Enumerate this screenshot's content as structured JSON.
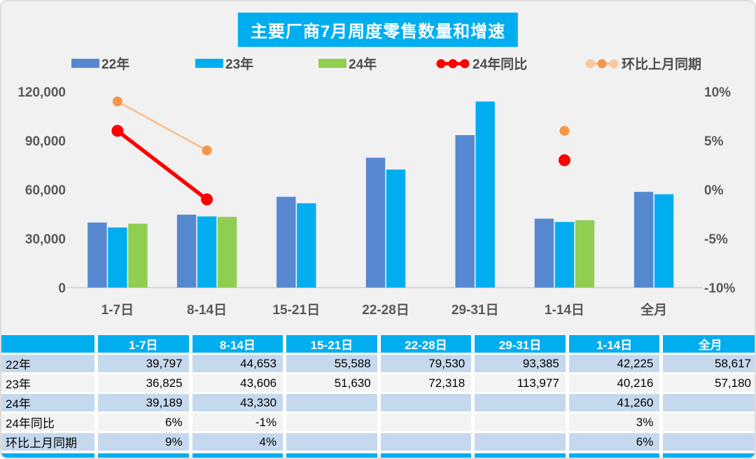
{
  "title": "主要厂商7月周度零售数量和增速",
  "chart_data": {
    "type": "bar+line",
    "title": "主要厂商7月周度零售数量和增速",
    "categories": [
      "1-7日",
      "8-14日",
      "15-21日",
      "22-28日",
      "29-31日",
      "1-14日",
      "全月"
    ],
    "bar_series": [
      {
        "name": "22年",
        "color": "#5688D0",
        "values": [
          39797,
          44653,
          55588,
          79530,
          93385,
          42225,
          58617
        ]
      },
      {
        "name": "23年",
        "color": "#00AEEF",
        "values": [
          36825,
          43606,
          51630,
          72318,
          113977,
          40216,
          57180
        ]
      },
      {
        "name": "24年",
        "color": "#8FCE50",
        "values": [
          39189,
          43330,
          null,
          null,
          null,
          41260,
          null
        ]
      }
    ],
    "line_series": [
      {
        "name": "24年同比",
        "line_color": "#FE0000",
        "dot_color": "#FE0000",
        "values_pct": [
          6,
          -1,
          null,
          null,
          null,
          3,
          null
        ]
      },
      {
        "name": "环比上月同期",
        "line_color": "#F8BE8C",
        "dot_color": "#F79646",
        "values_pct": [
          9,
          4,
          null,
          null,
          null,
          6,
          null
        ]
      }
    ],
    "left_axis": {
      "ticks": [
        "0",
        "30,000",
        "60,000",
        "90,000",
        "120,000"
      ],
      "min": 0,
      "max": 120000
    },
    "right_axis": {
      "ticks": [
        "-10%",
        "-5%",
        "0%",
        "5%",
        "10%"
      ],
      "min": -10,
      "max": 10
    },
    "grid": false,
    "legend_position": "top"
  },
  "table": {
    "header": [
      "",
      "1-7日",
      "8-14日",
      "15-21日",
      "22-28日",
      "29-31日",
      "1-14日",
      "全月"
    ],
    "rows": [
      {
        "label": "22年",
        "cells": [
          "39,797",
          "44,653",
          "55,588",
          "79,530",
          "93,385",
          "42,225",
          "58,617"
        ]
      },
      {
        "label": "23年",
        "cells": [
          "36,825",
          "43,606",
          "51,630",
          "72,318",
          "113,977",
          "40,216",
          "57,180"
        ]
      },
      {
        "label": "24年",
        "cells": [
          "39,189",
          "43,330",
          "",
          "",
          "",
          "41,260",
          ""
        ]
      },
      {
        "label": "24年同比",
        "cells": [
          "6%",
          "-1%",
          "",
          "",
          "",
          "3%",
          ""
        ]
      },
      {
        "label": "环比上月同期",
        "cells": [
          "9%",
          "4%",
          "",
          "",
          "",
          "6%",
          ""
        ]
      }
    ]
  },
  "colors": {
    "accent_cyan": "#00AEEF",
    "bar_blue": "#5688D0",
    "bar_green": "#8FCE50",
    "line_red": "#FE0000",
    "line_orange": "#F79646",
    "line_orange_pale": "#F8BE8C",
    "table_row_blue": "#C5D9EE",
    "table_row_gray": "#F3F3F3",
    "axis_text": "#595959",
    "background": "#F1F1F2"
  }
}
